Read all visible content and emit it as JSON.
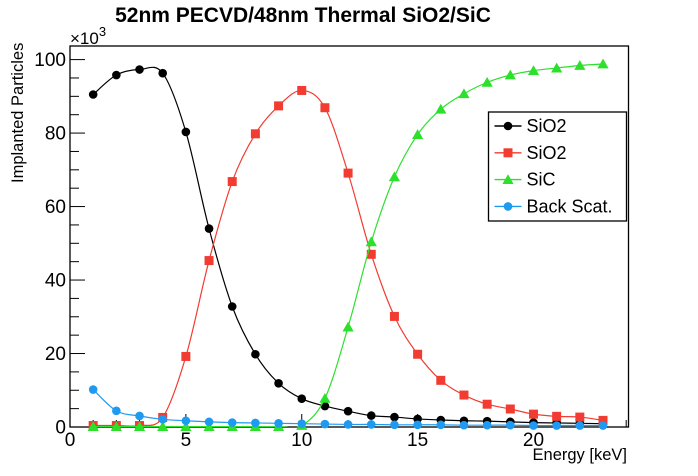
{
  "title": "52nm PECVD/48nm Thermal SiO2/SiC",
  "chart_data": {
    "type": "line",
    "title": "52nm PECVD/48nm Thermal SiO2/SiC",
    "xlabel": "Energy [keV]",
    "ylabel": "Implanted Particles",
    "y_multiplier_base": "×10",
    "y_multiplier_exp": "3",
    "xlim": [
      0,
      24.1
    ],
    "ylim": [
      0,
      103.7
    ],
    "grid": false,
    "x_major_ticks": [
      0,
      5,
      10,
      15,
      20
    ],
    "x_minor_step": 1,
    "y_major_ticks": [
      0,
      20,
      40,
      60,
      80,
      100
    ],
    "y_minor_step": 5,
    "x": [
      1,
      2,
      3,
      4,
      5,
      6,
      7,
      8,
      9,
      10,
      11,
      12,
      13,
      14,
      15,
      16,
      17,
      18,
      19,
      20,
      21,
      22,
      23
    ],
    "series": [
      {
        "name": "SiO2",
        "marker": "circle",
        "color": "#000000",
        "values": [
          90.5,
          95.8,
          97.3,
          96.3,
          80.3,
          54.0,
          32.8,
          19.8,
          11.9,
          7.7,
          5.7,
          4.3,
          3.1,
          2.7,
          2.2,
          1.9,
          1.7,
          1.6,
          1.4,
          1.2,
          1.1,
          1.0,
          0.9
        ]
      },
      {
        "name": "SiO2",
        "marker": "square",
        "color": "#f23c32",
        "values": [
          0.4,
          0.4,
          0.4,
          2.6,
          19.2,
          45.3,
          66.8,
          79.8,
          87.4,
          91.6,
          86.9,
          69.1,
          47.0,
          30.1,
          19.8,
          12.7,
          8.7,
          6.2,
          4.9,
          3.5,
          2.9,
          2.7,
          1.8
        ]
      },
      {
        "name": "SiC",
        "marker": "triangle",
        "color": "#2ce02c",
        "values": [
          0.1,
          0.1,
          0.1,
          0.1,
          0.1,
          0.1,
          0.1,
          0.1,
          0.1,
          0.4,
          7.8,
          27.2,
          50.4,
          68.1,
          79.6,
          86.5,
          90.7,
          93.8,
          95.8,
          97.0,
          97.7,
          98.4,
          98.8
        ]
      },
      {
        "name": "Back Scat.",
        "marker": "circle",
        "color": "#1e9af0",
        "values": [
          10.2,
          4.4,
          3.0,
          2.1,
          1.7,
          1.4,
          1.2,
          1.1,
          1.0,
          0.9,
          0.8,
          0.7,
          0.7,
          0.6,
          0.6,
          0.6,
          0.5,
          0.5,
          0.5,
          0.4,
          0.4,
          0.4,
          0.4
        ]
      }
    ],
    "legend": {
      "position": "right-center",
      "entries": [
        "SiO2",
        "SiO2",
        "SiC",
        "Back Scat."
      ]
    }
  }
}
